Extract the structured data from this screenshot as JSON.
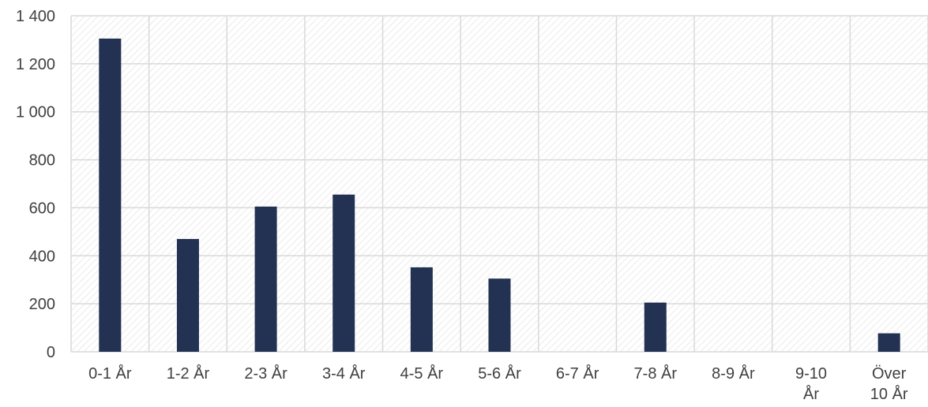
{
  "chart_data": {
    "type": "bar",
    "categories": [
      [
        "0-1 År"
      ],
      [
        "1-2 År"
      ],
      [
        "2-3 År"
      ],
      [
        "3-4 År"
      ],
      [
        "4-5 År"
      ],
      [
        "5-6 År"
      ],
      [
        "6-7 År"
      ],
      [
        "7-8 År"
      ],
      [
        "8-9 År"
      ],
      [
        "9-10",
        "År"
      ],
      [
        "Över",
        "10 År"
      ]
    ],
    "values": [
      1305,
      470,
      605,
      655,
      352,
      305,
      0,
      205,
      0,
      0,
      77
    ],
    "ylim": [
      0,
      1400
    ],
    "yticks": [
      0,
      200,
      400,
      600,
      800,
      1000,
      1200,
      1400
    ],
    "ytick_labels": [
      "0",
      "200",
      "400",
      "600",
      "800",
      "1 000",
      "1 200",
      "1 400"
    ],
    "grid": true,
    "colors": {
      "bar": "#233152",
      "grid": "#d9d9d9",
      "hatch": "#ececec",
      "text": "#404040"
    }
  }
}
